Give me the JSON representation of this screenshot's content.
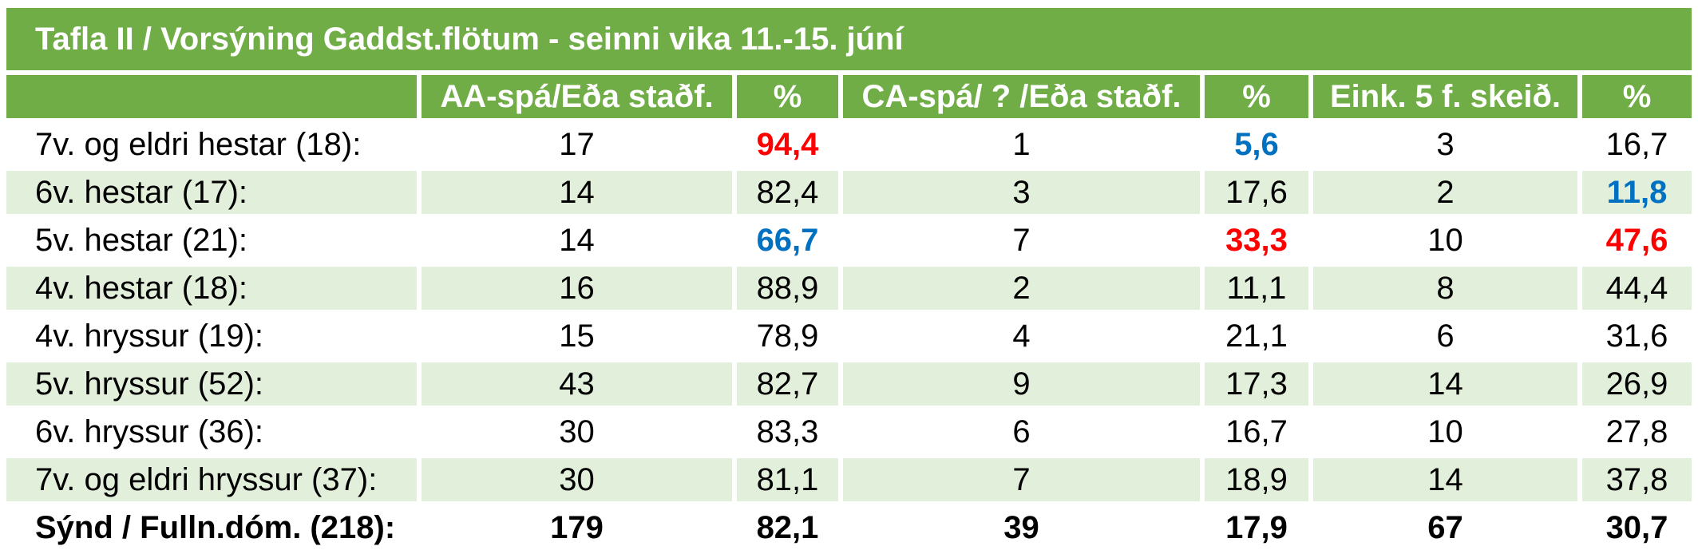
{
  "title": "Tafla II / Vorsýning Gaddst.flötum - seinni vika 11.-15. júní",
  "colors": {
    "header_bg": "#70ad47",
    "stripe_bg": "#e2efda",
    "highlight_red": "#ff0000",
    "highlight_blue": "#0070c0"
  },
  "columns": [
    "",
    "AA-spá/Eða staðf.",
    "%",
    "CA-spá/ ? /Eða staðf.",
    "%",
    "Eink. 5 f. skeið.",
    "%"
  ],
  "rows": [
    {
      "label": "7v. og eldri hestar (18):",
      "cells": [
        {
          "v": "17",
          "c": ""
        },
        {
          "v": "94,4",
          "c": "red"
        },
        {
          "v": "1",
          "c": ""
        },
        {
          "v": "5,6",
          "c": "blue"
        },
        {
          "v": "3",
          "c": ""
        },
        {
          "v": "16,7",
          "c": ""
        }
      ]
    },
    {
      "label": "6v. hestar (17):",
      "cells": [
        {
          "v": "14",
          "c": ""
        },
        {
          "v": "82,4",
          "c": ""
        },
        {
          "v": "3",
          "c": ""
        },
        {
          "v": "17,6",
          "c": ""
        },
        {
          "v": "2",
          "c": ""
        },
        {
          "v": "11,8",
          "c": "blue"
        }
      ]
    },
    {
      "label": "5v. hestar (21):",
      "cells": [
        {
          "v": "14",
          "c": ""
        },
        {
          "v": "66,7",
          "c": "blue"
        },
        {
          "v": "7",
          "c": ""
        },
        {
          "v": "33,3",
          "c": "red"
        },
        {
          "v": "10",
          "c": ""
        },
        {
          "v": "47,6",
          "c": "red"
        }
      ]
    },
    {
      "label": "4v. hestar (18):",
      "cells": [
        {
          "v": "16",
          "c": ""
        },
        {
          "v": "88,9",
          "c": ""
        },
        {
          "v": "2",
          "c": ""
        },
        {
          "v": "11,1",
          "c": ""
        },
        {
          "v": "8",
          "c": ""
        },
        {
          "v": "44,4",
          "c": ""
        }
      ]
    },
    {
      "label": "4v. hryssur (19):",
      "cells": [
        {
          "v": "15",
          "c": ""
        },
        {
          "v": "78,9",
          "c": ""
        },
        {
          "v": "4",
          "c": ""
        },
        {
          "v": "21,1",
          "c": ""
        },
        {
          "v": "6",
          "c": ""
        },
        {
          "v": "31,6",
          "c": ""
        }
      ]
    },
    {
      "label": "5v. hryssur (52):",
      "cells": [
        {
          "v": "43",
          "c": ""
        },
        {
          "v": "82,7",
          "c": ""
        },
        {
          "v": "9",
          "c": ""
        },
        {
          "v": "17,3",
          "c": ""
        },
        {
          "v": "14",
          "c": ""
        },
        {
          "v": "26,9",
          "c": ""
        }
      ]
    },
    {
      "label": "6v. hryssur (36):",
      "cells": [
        {
          "v": "30",
          "c": ""
        },
        {
          "v": "83,3",
          "c": ""
        },
        {
          "v": "6",
          "c": ""
        },
        {
          "v": "16,7",
          "c": ""
        },
        {
          "v": "10",
          "c": ""
        },
        {
          "v": "27,8",
          "c": ""
        }
      ]
    },
    {
      "label": "7v. og eldri hryssur (37):",
      "cells": [
        {
          "v": "30",
          "c": ""
        },
        {
          "v": "81,1",
          "c": ""
        },
        {
          "v": "7",
          "c": ""
        },
        {
          "v": "18,9",
          "c": ""
        },
        {
          "v": "14",
          "c": ""
        },
        {
          "v": "37,8",
          "c": ""
        }
      ]
    }
  ],
  "total": {
    "label": "Sýnd / Fulln.dóm. (218):",
    "cells": [
      "179",
      "82,1",
      "39",
      "17,9",
      "67",
      "30,7"
    ]
  }
}
